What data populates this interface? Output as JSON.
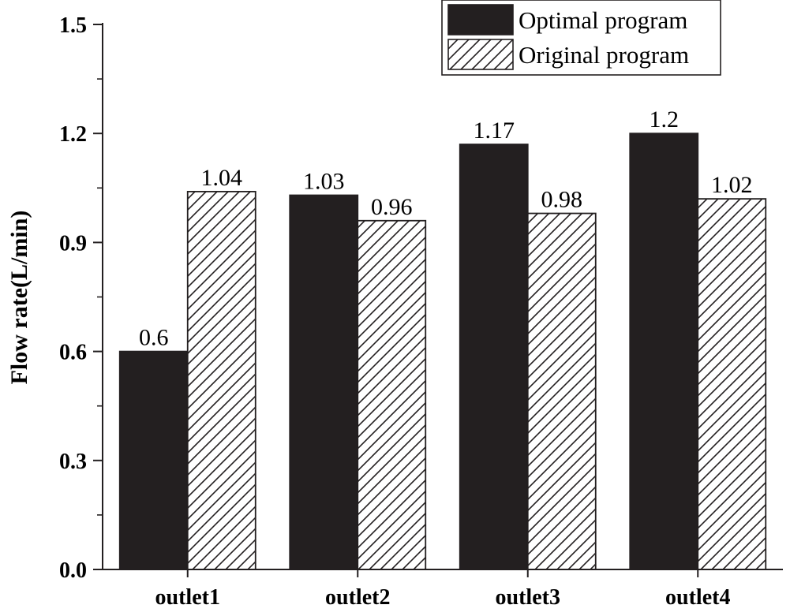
{
  "chart_data": {
    "type": "bar",
    "title": "",
    "xlabel": "",
    "ylabel": "Flow rate(L/min)",
    "ylim": [
      0,
      1.5
    ],
    "yticks": [
      0.0,
      0.3,
      0.6,
      0.9,
      1.2,
      1.5
    ],
    "ytick_labels": [
      "0.0",
      "0.3",
      "0.6",
      "0.9",
      "1.2",
      "1.5"
    ],
    "categories": [
      "outlet1",
      "outlet2",
      "outlet3",
      "outlet4"
    ],
    "series": [
      {
        "name": "Optimal program",
        "values": [
          0.6,
          1.03,
          1.17,
          1.2
        ],
        "labels": [
          "0.6",
          "1.03",
          "1.17",
          "1.2"
        ],
        "fill": "solid",
        "color": "#231f20"
      },
      {
        "name": "Original program",
        "values": [
          1.04,
          0.96,
          0.98,
          1.02
        ],
        "labels": [
          "1.04",
          "0.96",
          "0.98",
          "1.02"
        ],
        "fill": "hatch",
        "color": "#231f20"
      }
    ],
    "legend_position": "top-right",
    "grid": false
  }
}
